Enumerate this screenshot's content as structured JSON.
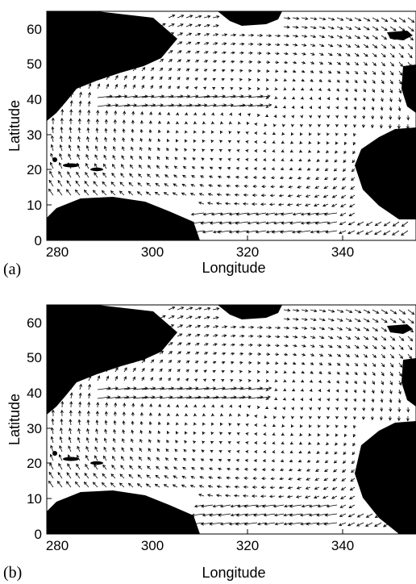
{
  "figure": {
    "panels": [
      {
        "label": "(a)"
      },
      {
        "label": "(b)"
      }
    ],
    "colors": {
      "land": "#000000",
      "ocean": "#ffffff",
      "arrow": "#000000"
    }
  },
  "chart_data": [
    {
      "type": "quiver",
      "xlabel": "Longitude",
      "ylabel": "Latitude",
      "xticks": [
        280,
        300,
        320,
        340
      ],
      "yticks": [
        0,
        10,
        20,
        30,
        40,
        50,
        60
      ],
      "xlim": [
        278,
        355
      ],
      "ylim": [
        0,
        65
      ],
      "land_masses": [
        "north-america",
        "greenland",
        "iceland",
        "south-america",
        "africa",
        "iberia-europe",
        "caribbean-islands"
      ],
      "major_features": [
        {
          "name": "gulf-stream-jet",
          "lon_range": [
            292,
            312
          ],
          "lat": 37
        },
        {
          "name": "equatorial-currents",
          "lon_range": [
            308,
            335
          ],
          "lat": 3
        },
        {
          "name": "north-atlantic-subpolar-flow",
          "lon_range": [
            320,
            350
          ],
          "lat": 50
        }
      ]
    },
    {
      "type": "quiver",
      "xlabel": "Longitude",
      "ylabel": "Latitude",
      "xticks": [
        280,
        300,
        320,
        340
      ],
      "yticks": [
        0,
        10,
        20,
        30,
        40,
        50,
        60
      ],
      "xlim": [
        278,
        355
      ],
      "ylim": [
        0,
        65
      ],
      "land_masses": [
        "north-america",
        "greenland",
        "iceland",
        "south-america",
        "africa",
        "iberia-europe",
        "caribbean-islands"
      ],
      "major_features": [
        {
          "name": "gulf-stream-jet",
          "lon_range": [
            290,
            318
          ],
          "lat": 38
        },
        {
          "name": "equatorial-currents",
          "lon_range": [
            312,
            348
          ],
          "lat": 2
        },
        {
          "name": "north-atlantic-subpolar-flow",
          "lon_range": [
            320,
            350
          ],
          "lat": 48
        }
      ]
    }
  ]
}
